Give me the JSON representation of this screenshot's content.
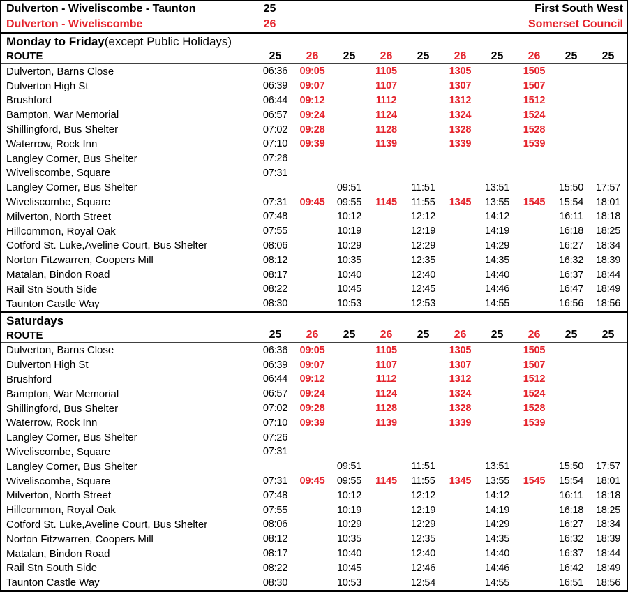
{
  "colors": {
    "red": "#e4232c",
    "black": "#000000",
    "rule_gray": "#404040"
  },
  "header": {
    "line1": {
      "title": "Dulverton - Wiveliscombe - Taunton",
      "route_number": "25",
      "operator": "First South West"
    },
    "line2": {
      "title": "Dulverton - Wiveliscombe",
      "route_number": "26",
      "operator": "Somerset Council"
    }
  },
  "sections": [
    {
      "title_bold": "Monday to Friday",
      "title_normal": " (except Public Holidays)",
      "route_label": "ROUTE",
      "route_numbers": [
        "25",
        "26",
        "25",
        "26",
        "25",
        "26",
        "25",
        "26",
        "25",
        "25"
      ],
      "red_columns": [
        1,
        3,
        5,
        7
      ],
      "rows": [
        {
          "stop": "Dulverton, Barns Close",
          "times": [
            "06:36",
            "09:05",
            "",
            "1105",
            "",
            "1305",
            "",
            "1505",
            "",
            ""
          ]
        },
        {
          "stop": "Dulverton High St",
          "times": [
            "06:39",
            "09:07",
            "",
            "1107",
            "",
            "1307",
            "",
            "1507",
            "",
            ""
          ]
        },
        {
          "stop": "Brushford",
          "times": [
            "06:44",
            "09:12",
            "",
            "1112",
            "",
            "1312",
            "",
            "1512",
            "",
            ""
          ]
        },
        {
          "stop": "Bampton, War Memorial",
          "times": [
            "06:57",
            "09:24",
            "",
            "1124",
            "",
            "1324",
            "",
            "1524",
            "",
            ""
          ]
        },
        {
          "stop": "Shillingford, Bus Shelter",
          "times": [
            "07:02",
            "09:28",
            "",
            "1128",
            "",
            "1328",
            "",
            "1528",
            "",
            ""
          ]
        },
        {
          "stop": "Waterrow, Rock Inn",
          "times": [
            "07:10",
            "09:39",
            "",
            "1139",
            "",
            "1339",
            "",
            "1539",
            "",
            ""
          ]
        },
        {
          "stop": "Langley Corner, Bus Shelter",
          "times": [
            "07:26",
            "",
            "",
            "",
            "",
            "",
            "",
            "",
            "",
            ""
          ]
        },
        {
          "stop": "Wiveliscombe, Square",
          "times": [
            "07:31",
            "",
            "",
            "",
            "",
            "",
            "",
            "",
            "",
            ""
          ]
        },
        {
          "stop": "Langley Corner, Bus Shelter",
          "times": [
            "",
            "",
            "09:51",
            "",
            "11:51",
            "",
            "13:51",
            "",
            "15:50",
            "17:57"
          ]
        },
        {
          "stop": "Wiveliscombe, Square",
          "times": [
            "07:31",
            "09:45",
            "09:55",
            "1145",
            "11:55",
            "1345",
            "13:55",
            "1545",
            "15:54",
            "18:01"
          ]
        },
        {
          "stop": "Milverton, North Street",
          "times": [
            "07:48",
            "",
            "10:12",
            "",
            "12:12",
            "",
            "14:12",
            "",
            "16:11",
            "18:18"
          ]
        },
        {
          "stop": "Hillcommon, Royal Oak",
          "times": [
            "07:55",
            "",
            "10:19",
            "",
            "12:19",
            "",
            "14:19",
            "",
            "16:18",
            "18:25"
          ]
        },
        {
          "stop": "Cotford St. Luke,Aveline Court, Bus Shelter",
          "times": [
            "08:06",
            "",
            "10:29",
            "",
            "12:29",
            "",
            "14:29",
            "",
            "16:27",
            "18:34"
          ]
        },
        {
          "stop": "Norton Fitzwarren, Coopers Mill",
          "times": [
            "08:12",
            "",
            "10:35",
            "",
            "12:35",
            "",
            "14:35",
            "",
            "16:32",
            "18:39"
          ]
        },
        {
          "stop": "Matalan, Bindon Road",
          "times": [
            "08:17",
            "",
            "10:40",
            "",
            "12:40",
            "",
            "14:40",
            "",
            "16:37",
            "18:44"
          ]
        },
        {
          "stop": "Rail Stn South Side",
          "times": [
            "08:22",
            "",
            "10:45",
            "",
            "12:45",
            "",
            "14:46",
            "",
            "16:47",
            "18:49"
          ]
        },
        {
          "stop": "Taunton Castle Way",
          "times": [
            "08:30",
            "",
            "10:53",
            "",
            "12:53",
            "",
            "14:55",
            "",
            "16:56",
            "18:56"
          ]
        }
      ]
    },
    {
      "title_bold": "Saturdays",
      "title_normal": "",
      "route_label": "ROUTE",
      "route_numbers": [
        "25",
        "26",
        "25",
        "26",
        "25",
        "26",
        "25",
        "26",
        "25",
        "25"
      ],
      "red_columns": [
        1,
        3,
        5,
        7
      ],
      "rows": [
        {
          "stop": "Dulverton, Barns Close",
          "times": [
            "06:36",
            "09:05",
            "",
            "1105",
            "",
            "1305",
            "",
            "1505",
            "",
            ""
          ]
        },
        {
          "stop": "Dulverton High St",
          "times": [
            "06:39",
            "09:07",
            "",
            "1107",
            "",
            "1307",
            "",
            "1507",
            "",
            ""
          ]
        },
        {
          "stop": "Brushford",
          "times": [
            "06:44",
            "09:12",
            "",
            "1112",
            "",
            "1312",
            "",
            "1512",
            "",
            ""
          ]
        },
        {
          "stop": "Bampton, War Memorial",
          "times": [
            "06:57",
            "09:24",
            "",
            "1124",
            "",
            "1324",
            "",
            "1524",
            "",
            ""
          ]
        },
        {
          "stop": "Shillingford, Bus Shelter",
          "times": [
            "07:02",
            "09:28",
            "",
            "1128",
            "",
            "1328",
            "",
            "1528",
            "",
            ""
          ]
        },
        {
          "stop": "Waterrow, Rock Inn",
          "times": [
            "07:10",
            "09:39",
            "",
            "1139",
            "",
            "1339",
            "",
            "1539",
            "",
            ""
          ]
        },
        {
          "stop": "Langley Corner, Bus Shelter",
          "times": [
            "07:26",
            "",
            "",
            "",
            "",
            "",
            "",
            "",
            "",
            ""
          ]
        },
        {
          "stop": "Wiveliscombe, Square",
          "times": [
            "07:31",
            "",
            "",
            "",
            "",
            "",
            "",
            "",
            "",
            ""
          ]
        },
        {
          "stop": "Langley Corner, Bus Shelter",
          "times": [
            "",
            "",
            "09:51",
            "",
            "11:51",
            "",
            "13:51",
            "",
            "15:50",
            "17:57"
          ]
        },
        {
          "stop": "Wiveliscombe, Square",
          "times": [
            "07:31",
            "09:45",
            "09:55",
            "1145",
            "11:55",
            "1345",
            "13:55",
            "1545",
            "15:54",
            "18:01"
          ]
        },
        {
          "stop": "Milverton, North Street",
          "times": [
            "07:48",
            "",
            "10:12",
            "",
            "12:12",
            "",
            "14:12",
            "",
            "16:11",
            "18:18"
          ]
        },
        {
          "stop": "Hillcommon, Royal Oak",
          "times": [
            "07:55",
            "",
            "10:19",
            "",
            "12:19",
            "",
            "14:19",
            "",
            "16:18",
            "18:25"
          ]
        },
        {
          "stop": "Cotford St. Luke,Aveline Court, Bus Shelter",
          "times": [
            "08:06",
            "",
            "10:29",
            "",
            "12:29",
            "",
            "14:29",
            "",
            "16:27",
            "18:34"
          ]
        },
        {
          "stop": "Norton Fitzwarren, Coopers Mill",
          "times": [
            "08:12",
            "",
            "10:35",
            "",
            "12:35",
            "",
            "14:35",
            "",
            "16:32",
            "18:39"
          ]
        },
        {
          "stop": "Matalan, Bindon Road",
          "times": [
            "08:17",
            "",
            "10:40",
            "",
            "12:40",
            "",
            "14:40",
            "",
            "16:37",
            "18:44"
          ]
        },
        {
          "stop": "Rail Stn South Side",
          "times": [
            "08:22",
            "",
            "10:45",
            "",
            "12:46",
            "",
            "14:46",
            "",
            "16:42",
            "18:49"
          ]
        },
        {
          "stop": "Taunton Castle Way",
          "times": [
            "08:30",
            "",
            "10:53",
            "",
            "12:54",
            "",
            "14:55",
            "",
            "16:51",
            "18:56"
          ]
        }
      ]
    }
  ]
}
